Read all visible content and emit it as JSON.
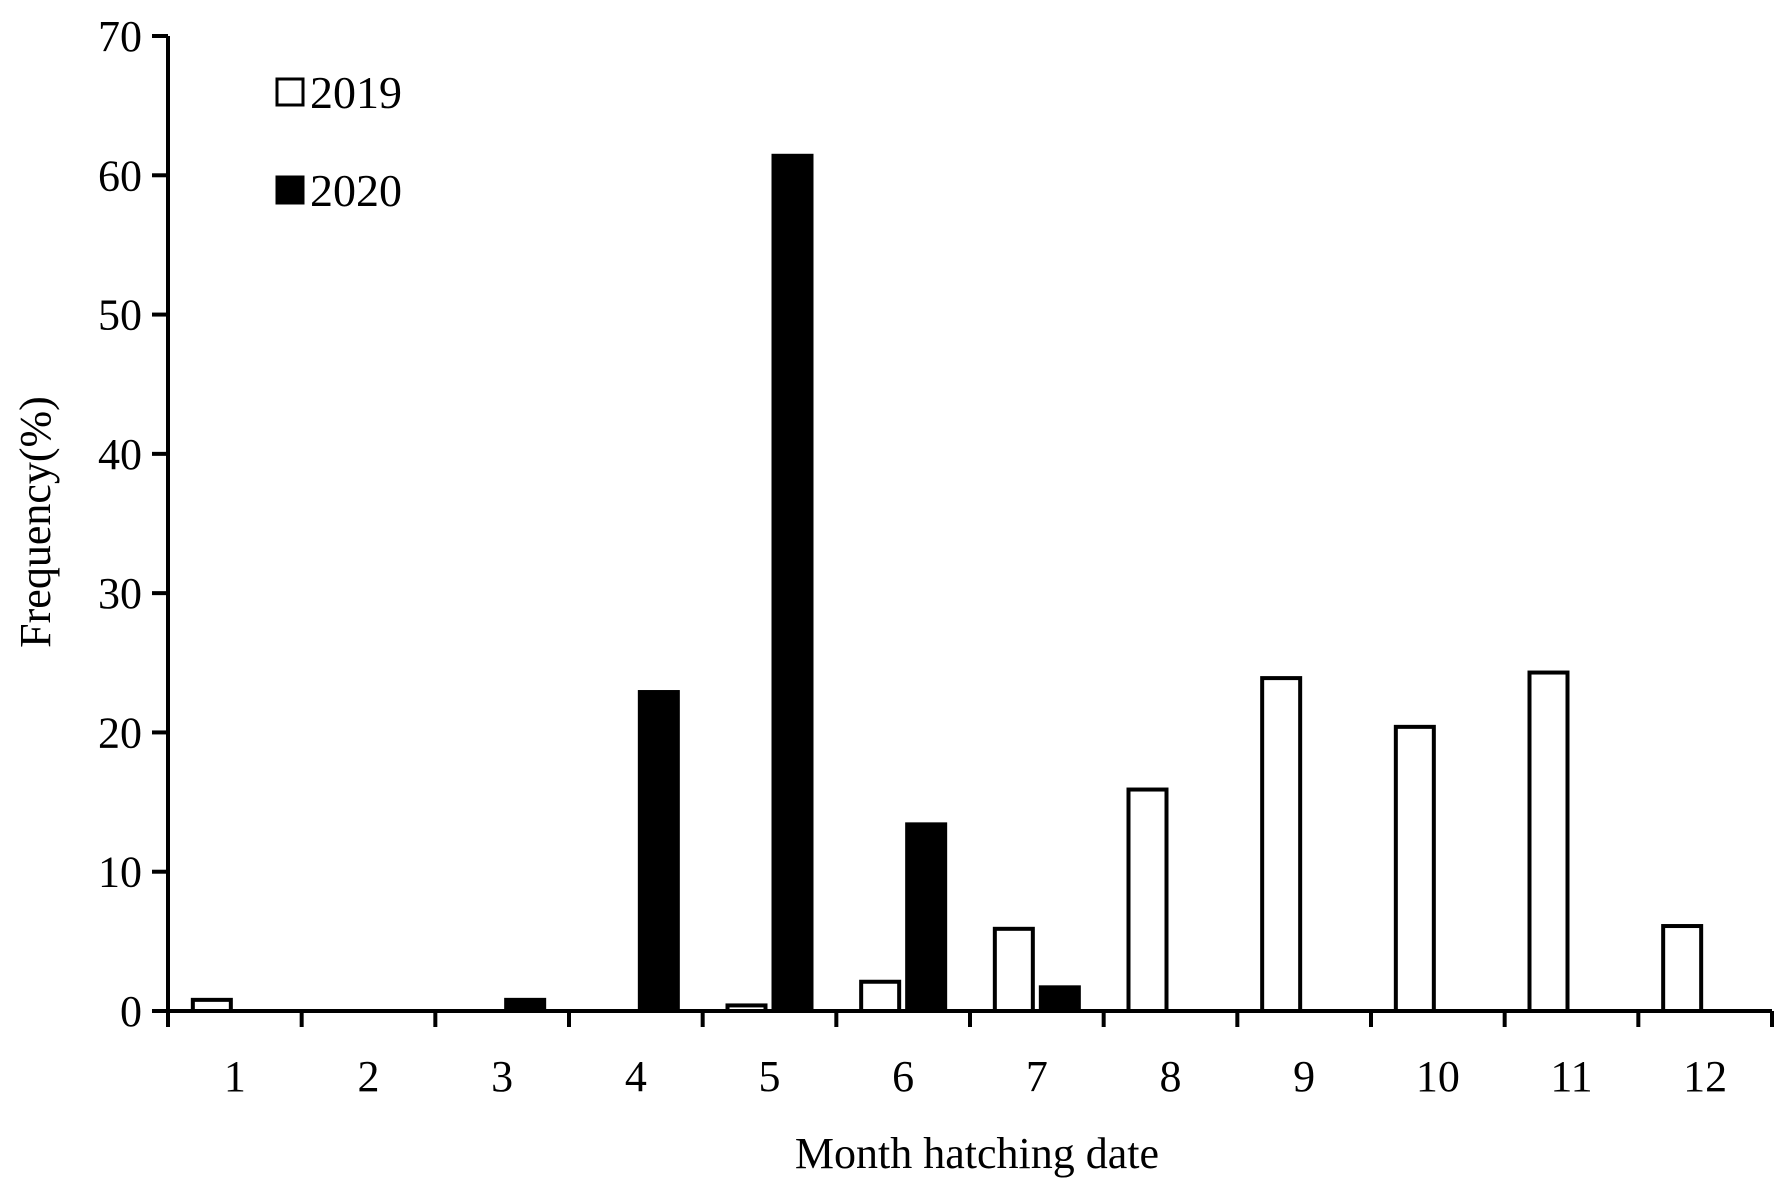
{
  "chart_data": {
    "type": "bar",
    "title": "",
    "xlabel": "Month hatching date",
    "ylabel": "Frequency(%)",
    "categories": [
      "1",
      "2",
      "3",
      "4",
      "5",
      "6",
      "7",
      "8",
      "9",
      "10",
      "11",
      "12"
    ],
    "ylim": [
      0,
      70
    ],
    "yticks": [
      "0",
      "10",
      "20",
      "30",
      "40",
      "50",
      "60",
      "70"
    ],
    "grid": false,
    "legend_position": "top-left",
    "series": [
      {
        "name": "2019",
        "fill": "#ffffff",
        "values": [
          0.8,
          0,
          0,
          0,
          0.4,
          2.1,
          5.9,
          15.9,
          23.9,
          20.4,
          24.3,
          6.1
        ]
      },
      {
        "name": "2020",
        "fill": "#000000",
        "values": [
          0,
          0,
          0.8,
          22.9,
          61.4,
          13.4,
          1.7,
          0,
          0,
          0,
          0,
          0
        ]
      }
    ]
  }
}
